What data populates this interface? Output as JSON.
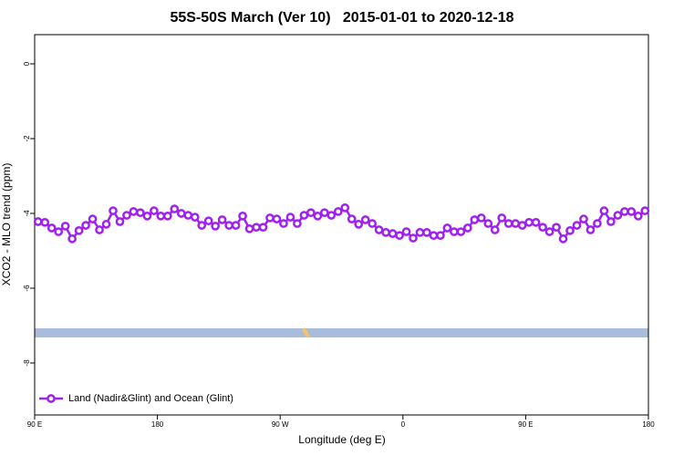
{
  "chart_data": {
    "type": "line",
    "title": "55S-50S March (Ver 10)   2015-01-01 to 2020-12-18",
    "xlabel": "Longitude (deg E)",
    "ylabel": "XCO2 - MLO trend (ppm)",
    "x": [
      92.5,
      97.5,
      102.5,
      107.5,
      112.5,
      117.5,
      122.5,
      127.5,
      132.5,
      137.5,
      142.5,
      147.5,
      152.5,
      157.5,
      162.5,
      167.5,
      172.5,
      177.5,
      182.5,
      187.5,
      192.5,
      197.5,
      202.5,
      207.5,
      212.5,
      217.5,
      222.5,
      227.5,
      232.5,
      237.5,
      242.5,
      247.5,
      252.5,
      257.5,
      262.5,
      267.5,
      272.5,
      277.5,
      282.5,
      287.5,
      292.5,
      297.5,
      302.5,
      307.5,
      312.5,
      317.5,
      322.5,
      327.5,
      332.5,
      337.5,
      342.5,
      347.5,
      352.5,
      357.5,
      362.5,
      367.5,
      372.5,
      377.5,
      382.5,
      387.5,
      392.5,
      397.5,
      402.5,
      407.5,
      412.5,
      417.5,
      422.5,
      427.5,
      432.5,
      437.5,
      442.5,
      447.5,
      452.5,
      457.5,
      462.5,
      467.5,
      472.5,
      477.5,
      482.5,
      487.5,
      492.5,
      497.5,
      502.5,
      507.5,
      512.5,
      517.5,
      522.5,
      527.5,
      532.5,
      537.5
    ],
    "series": [
      {
        "name": "Land (Nadir&Glint) and Ocean (Glint)",
        "color": "#a020f0",
        "values": [
          -4.22,
          -4.24,
          -4.39,
          -4.49,
          -4.34,
          -4.68,
          -4.46,
          -4.32,
          -4.15,
          -4.44,
          -4.29,
          -3.93,
          -4.22,
          -4.05,
          -3.95,
          -3.98,
          -4.07,
          -3.93,
          -4.07,
          -4.07,
          -3.88,
          -4.0,
          -4.05,
          -4.1,
          -4.32,
          -4.2,
          -4.34,
          -4.17,
          -4.32,
          -4.32,
          -4.07,
          -4.41,
          -4.37,
          -4.37,
          -4.12,
          -4.15,
          -4.27,
          -4.1,
          -4.27,
          -4.05,
          -3.98,
          -4.07,
          -3.98,
          -4.05,
          -3.95,
          -3.85,
          -4.15,
          -4.29,
          -4.17,
          -4.27,
          -4.44,
          -4.51,
          -4.54,
          -4.59,
          -4.49,
          -4.66,
          -4.51,
          -4.51,
          -4.59,
          -4.59,
          -4.39,
          -4.49,
          -4.49,
          -4.39,
          -4.17,
          -4.12,
          -4.27,
          -4.44,
          -4.12,
          -4.27,
          -4.27,
          -4.32,
          -4.24,
          -4.24,
          -4.37,
          -4.49,
          -4.37,
          -4.68,
          -4.46,
          -4.32,
          -4.15,
          -4.44,
          -4.27,
          -3.93,
          -4.22,
          -4.05,
          -3.95,
          -3.95,
          -4.07,
          -3.93
        ]
      }
    ],
    "xlim": [
      90,
      540
    ],
    "xticks": [
      {
        "value": 90,
        "label": "90 E"
      },
      180,
      {
        "value": 270,
        "label": "90 W"
      },
      {
        "value": 360,
        "label": "0"
      },
      {
        "value": 450,
        "label": "90 E"
      },
      {
        "value": 540,
        "label": "180"
      }
    ],
    "ylim": [
      -9.39,
      0.78
    ],
    "yticks": [
      0,
      -2,
      -4,
      -6,
      -8
    ],
    "grid": false,
    "legend": "bottom-left"
  }
}
